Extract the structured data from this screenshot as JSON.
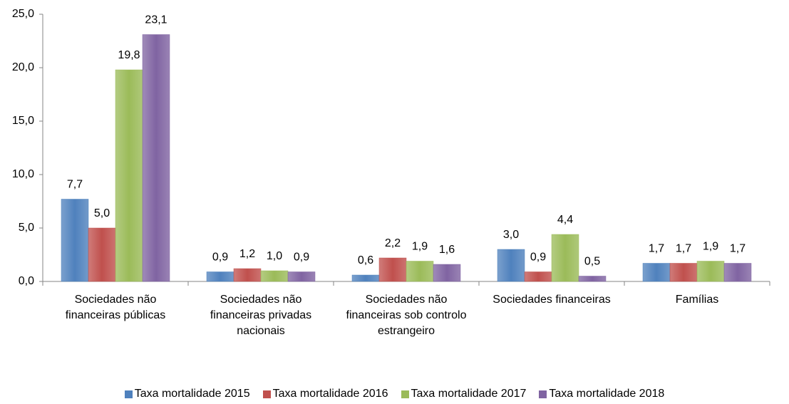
{
  "chart_data": {
    "type": "bar",
    "categories": [
      "Sociedades não financeiras públicas",
      "Sociedades não financeiras privadas nacionais",
      "Sociedades não financeiras sob controlo estrangeiro",
      "Sociedades financeiras",
      "Famílias"
    ],
    "series": [
      {
        "name": "Taxa mortalidade 2015",
        "color": "#4f81bd",
        "values": [
          7.7,
          0.9,
          0.6,
          3.0,
          1.7
        ],
        "value_labels": [
          "7,7",
          "0,9",
          "0,6",
          "3,0",
          "1,7"
        ]
      },
      {
        "name": "Taxa mortalidade 2016",
        "color": "#c0504d",
        "values": [
          5.0,
          1.2,
          2.2,
          0.9,
          1.7
        ],
        "value_labels": [
          "5,0",
          "1,2",
          "2,2",
          "0,9",
          "1,7"
        ]
      },
      {
        "name": "Taxa mortalidade 2017",
        "color": "#9bbb59",
        "values": [
          19.8,
          1.0,
          1.9,
          4.4,
          1.9
        ],
        "value_labels": [
          "19,8",
          "1,0",
          "1,9",
          "4,4",
          "1,9"
        ]
      },
      {
        "name": "Taxa mortalidade 2018",
        "color": "#8064a2",
        "values": [
          23.1,
          0.9,
          1.6,
          0.5,
          1.7
        ],
        "value_labels": [
          "23,1",
          "0,9",
          "1,6",
          "0,5",
          "1,7"
        ]
      }
    ],
    "ylim": [
      0,
      25
    ],
    "yticks": [
      {
        "value": 0,
        "label": "0,0"
      },
      {
        "value": 5,
        "label": "5,0"
      },
      {
        "value": 10,
        "label": "10,0"
      },
      {
        "value": 15,
        "label": "15,0"
      },
      {
        "value": 20,
        "label": "20,0"
      },
      {
        "value": 25,
        "label": "25,0"
      }
    ],
    "grid": false,
    "legend": "bottom"
  }
}
